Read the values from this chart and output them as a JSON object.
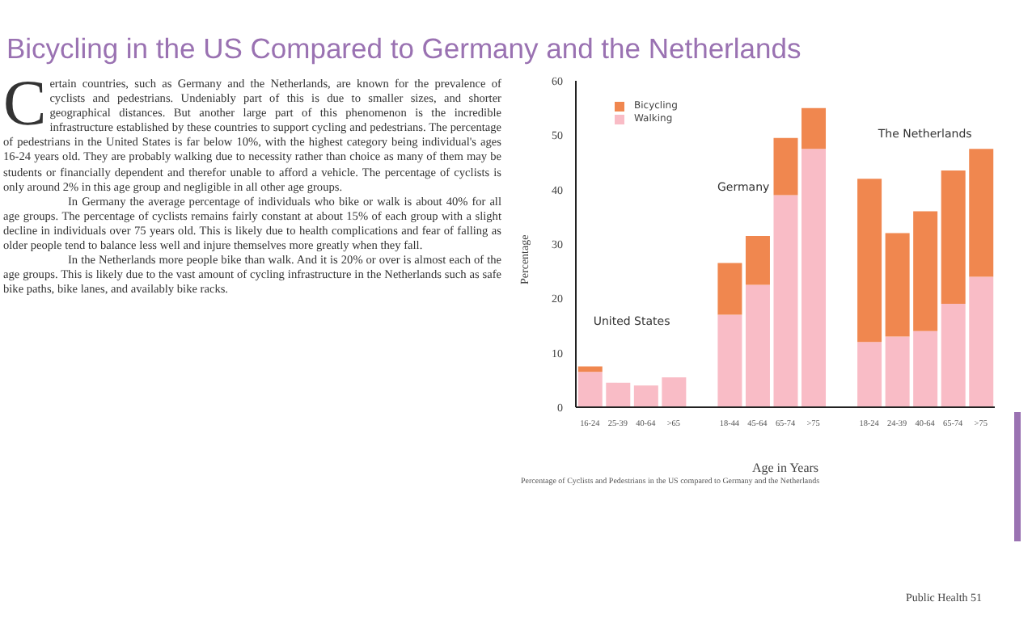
{
  "chart_data": {
    "type": "bar",
    "title": "Bicycling in the US Compared to Germany and the Netherlands",
    "xlabel": "Age in Years",
    "ylabel": "Percentage",
    "categories": [
      "16-24",
      "25-39",
      "40-64",
      ">65",
      null,
      "18-44",
      "45-64",
      "65-74",
      ">75",
      null,
      "18-24",
      "24-39",
      "40-64",
      "65-74",
      ">75"
    ],
    "stacked": true,
    "series": [
      {
        "name": "Walking",
        "color": "#f9bcc6",
        "values": [
          6.5,
          4.5,
          4,
          5.5,
          null,
          17,
          22.5,
          39,
          47.5,
          null,
          12,
          13,
          14,
          19,
          24
        ]
      },
      {
        "name": "Bicycling",
        "color": "#f0874f",
        "values": [
          1,
          null,
          null,
          null,
          null,
          9.5,
          9,
          10.5,
          7.5,
          null,
          30,
          19,
          22,
          24.5,
          23.5
        ]
      }
    ],
    "ylim": [
      0,
      60
    ],
    "yticks": [
      0,
      10,
      20,
      30,
      40,
      50,
      60
    ],
    "grid": false,
    "legend": "top left",
    "annotations": [
      "United States",
      "Germany",
      "The Netherlands",
      "Percentage of Cyclists and Pedestrians in the US compared to Germany and the Netherlands",
      "Certain countries, such as Germany and the Netherlands, are known for the prevalence of cyclists and pedestrians. Undeniably part of this is due to smaller sizes, and shorter geographical distances. But another large part of this phenomenon is the incredible infrastructure established by these countries to support cycling and pedestrians. The percentage of pedestrians in the United States is far below 10%, with the highest category being individual's ages 16-24 years old. They are probably walking due to necessity rather than choice as many of them may be students or financially dependent and therefor unable to afford a vehicle. The percentage of cyclists is only around 2% in this age group and negligible in all other age groups.",
      "In Germany the average percentage of individuals who bike or walk is about 40% for all age groups. The percentage of cyclists remains fairly constant at about 15% of each group with a slight decline in individuals over 75 years old. This is likely due to health complications and fear of falling as older people tend to balance less well and injure themselves more greatly when they fall.",
      "In the Netherlands more people bike than walk. And it is 20% or over is almost each of the age groups. This is likely due to the vast amount of cycling infrastructure in the Netherlands such as safe bike paths, bike lanes, and availably bike racks.",
      "Public Health 51"
    ]
  }
}
